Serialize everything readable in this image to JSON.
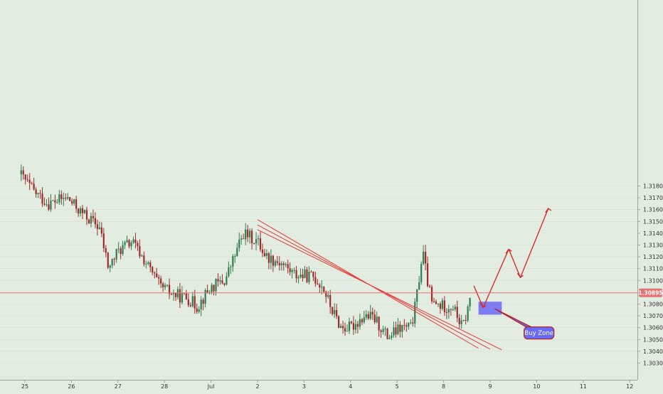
{
  "colors": {
    "background": "#e3ece0",
    "up_candle": "#2e7d4f",
    "down_candle": "#9e2a2a",
    "trendline": "#e53935",
    "projection": "#d32f2f",
    "price_line": "#e57373",
    "buy_zone": "#6a6af5",
    "axis_text": "#333333"
  },
  "chart_data": {
    "type": "candlestick",
    "price_axis": {
      "ticks": [
        "1.31800",
        "1.31700",
        "1.31600",
        "1.31500",
        "1.31400",
        "1.31300",
        "1.31200",
        "1.31100",
        "1.31000",
        "1.30800",
        "1.30700",
        "1.30600",
        "1.30500",
        "1.30400",
        "1.30300"
      ],
      "range": [
        1.3027,
        1.3183
      ]
    },
    "current_price": {
      "label": "1.30895",
      "value": 1.30895
    },
    "time_axis": {
      "labels": [
        {
          "text": "25",
          "day": 0
        },
        {
          "text": "26",
          "day": 1
        },
        {
          "text": "27",
          "day": 2
        },
        {
          "text": "28",
          "day": 3
        },
        {
          "text": "Jul",
          "day": 4
        },
        {
          "text": "2",
          "day": 5
        },
        {
          "text": "3",
          "day": 6
        },
        {
          "text": "4",
          "day": 7
        },
        {
          "text": "5",
          "day": 8
        },
        {
          "text": "8",
          "day": 9
        },
        {
          "text": "9",
          "day": 10
        },
        {
          "text": "10",
          "day": 11
        },
        {
          "text": "11",
          "day": 12
        },
        {
          "text": "12",
          "day": 13
        }
      ]
    },
    "price_anchors": [
      [
        -0.1,
        1.319
      ],
      [
        0.2,
        1.3175
      ],
      [
        0.5,
        1.3165
      ],
      [
        0.9,
        1.317
      ],
      [
        1.2,
        1.3158
      ],
      [
        1.6,
        1.3145
      ],
      [
        1.8,
        1.311
      ],
      [
        2.0,
        1.3125
      ],
      [
        2.3,
        1.3133
      ],
      [
        2.6,
        1.3115
      ],
      [
        2.9,
        1.3095
      ],
      [
        3.2,
        1.3088
      ],
      [
        3.5,
        1.3085
      ],
      [
        3.7,
        1.3078
      ],
      [
        4.0,
        1.3094
      ],
      [
        4.3,
        1.31
      ],
      [
        4.7,
        1.314
      ],
      [
        5.0,
        1.3133
      ],
      [
        5.2,
        1.312
      ],
      [
        5.5,
        1.3115
      ],
      [
        5.8,
        1.3105
      ],
      [
        6.2,
        1.3103
      ],
      [
        6.4,
        1.3095
      ],
      [
        6.6,
        1.3075
      ],
      [
        6.8,
        1.306
      ],
      [
        7.0,
        1.306
      ],
      [
        7.3,
        1.307
      ],
      [
        7.5,
        1.3068
      ],
      [
        7.8,
        1.3052
      ],
      [
        8.1,
        1.306
      ],
      [
        8.3,
        1.306
      ],
      [
        8.4,
        1.308
      ],
      [
        8.55,
        1.3125
      ],
      [
        8.65,
        1.31
      ],
      [
        8.75,
        1.308
      ],
      [
        9.0,
        1.3078
      ],
      [
        9.2,
        1.3078
      ],
      [
        9.4,
        1.306
      ],
      [
        9.5,
        1.3072
      ],
      [
        9.6,
        1.309
      ]
    ],
    "trendlines": [
      {
        "from": [
          5.0,
          1.31515
        ],
        "to": [
          9.75,
          1.30425
        ]
      },
      {
        "from": [
          5.0,
          1.3147
        ],
        "to": [
          10.0,
          1.30418
        ]
      },
      {
        "from": [
          5.0,
          1.3143
        ],
        "to": [
          10.25,
          1.30412
        ]
      }
    ],
    "projection_path": [
      [
        9.65,
        1.30955
      ],
      [
        9.85,
        1.3077
      ],
      [
        10.4,
        1.31265
      ],
      [
        10.65,
        1.31025
      ],
      [
        11.25,
        1.3161
      ]
    ],
    "buy_zone": {
      "day_from": 9.75,
      "day_to": 10.25,
      "price_from": 1.3071,
      "price_to": 1.3082
    },
    "annotation": {
      "text": "Buy Zone",
      "anchor_day": 10.1,
      "anchor_price": 1.3076,
      "label_day": 11.05,
      "label_price": 1.30555
    }
  }
}
